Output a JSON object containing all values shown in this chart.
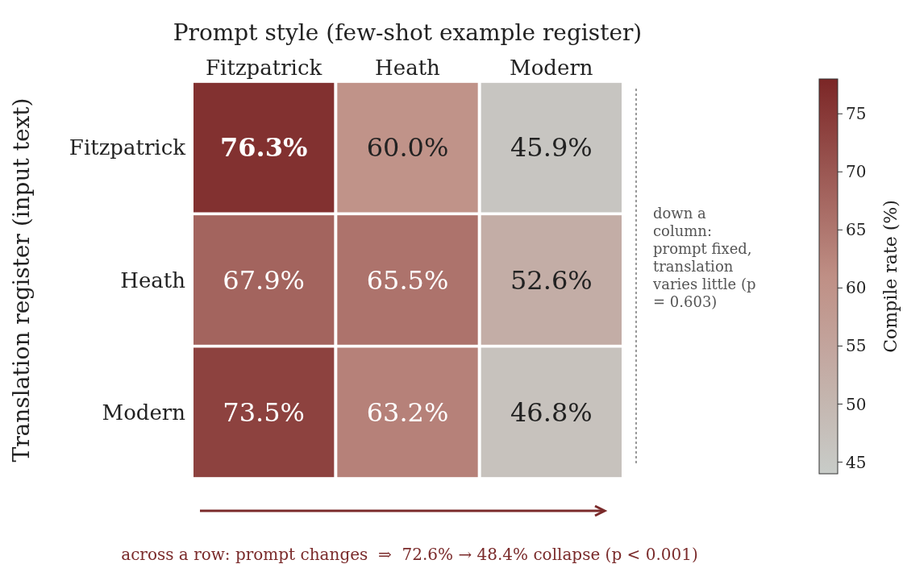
{
  "chart_data": {
    "type": "heatmap",
    "xlabel": "Prompt style (few-shot example register)",
    "ylabel": "Translation register (input text)",
    "clabel": "Compile rate (%)",
    "categories": [
      "Fitzpatrick",
      "Heath",
      "Modern"
    ],
    "y_categories": [
      "Fitzpatrick",
      "Heath",
      "Modern"
    ],
    "cells": [
      [
        76.3,
        60.0,
        45.9
      ],
      [
        67.9,
        65.5,
        52.6
      ],
      [
        73.5,
        63.2,
        46.8
      ]
    ],
    "cell_labels": [
      [
        "76.3%",
        "60.0%",
        "45.9%"
      ],
      [
        "67.9%",
        "65.5%",
        "52.6%"
      ],
      [
        "73.5%",
        "63.2%",
        "46.8%"
      ]
    ],
    "clim": [
      44,
      78
    ],
    "cticks": [
      45,
      50,
      55,
      60,
      65,
      70,
      75
    ],
    "annotations": [
      "down a column: prompt fixed, translation varies little (p = 0.603)",
      "across a row: prompt changes  ⇒  72.6% → 48.4% collapse (p < 0.001)"
    ]
  }
}
